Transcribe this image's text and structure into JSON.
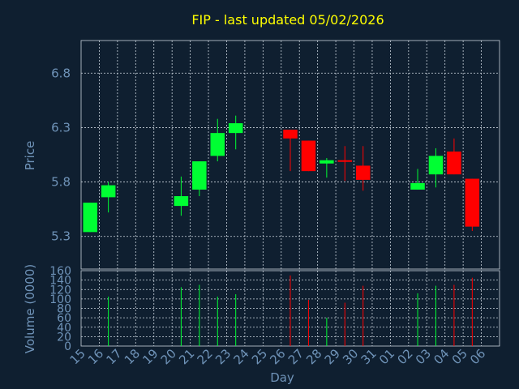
{
  "chart_data": {
    "type": "candlestick",
    "title": "FIP - last updated 05/02/2026",
    "xlabel": "Day",
    "price_ylabel": "Price",
    "volume_ylabel": "Volume (0000)",
    "x_ticks": [
      "15",
      "16",
      "17",
      "18",
      "19",
      "20",
      "21",
      "22",
      "23",
      "24",
      "25",
      "26",
      "27",
      "28",
      "29",
      "30",
      "31",
      "01",
      "02",
      "03",
      "04",
      "05",
      "06"
    ],
    "price_y_ticks": [
      5.3,
      5.8,
      6.3,
      6.8
    ],
    "price_ylim": [
      5.0,
      7.1
    ],
    "volume_y_ticks": [
      0,
      20,
      40,
      60,
      80,
      100,
      120,
      140,
      160
    ],
    "volume_ylim": [
      0,
      160
    ],
    "grid": true,
    "colors": {
      "up": "#00ff33",
      "down": "#ff0000",
      "title": "#ffff00",
      "label": "#6f93b8",
      "background": "#0f1f30"
    },
    "candles": [
      {
        "day": "15",
        "open": 5.34,
        "close": 5.61,
        "high": 5.61,
        "low": 5.34,
        "volume": 0
      },
      {
        "day": "16",
        "open": 5.66,
        "close": 5.77,
        "high": 5.8,
        "low": 5.52,
        "volume": 105
      },
      {
        "day": "20",
        "open": 5.58,
        "close": 5.67,
        "high": 5.85,
        "low": 5.49,
        "volume": 125
      },
      {
        "day": "21",
        "open": 5.73,
        "close": 5.99,
        "high": 5.99,
        "low": 5.67,
        "volume": 130
      },
      {
        "day": "22",
        "open": 6.04,
        "close": 6.25,
        "high": 6.38,
        "low": 5.99,
        "volume": 105
      },
      {
        "day": "23",
        "open": 6.25,
        "close": 6.34,
        "high": 6.41,
        "low": 6.1,
        "volume": 110
      },
      {
        "day": "26",
        "open": 6.28,
        "close": 6.2,
        "high": 6.28,
        "low": 5.9,
        "volume": 150
      },
      {
        "day": "27",
        "open": 6.18,
        "close": 5.9,
        "high": 6.18,
        "low": 5.9,
        "volume": 98
      },
      {
        "day": "28",
        "open": 5.97,
        "close": 6.0,
        "high": 6.02,
        "low": 5.84,
        "volume": 60
      },
      {
        "day": "29",
        "open": 6.0,
        "close": 5.99,
        "high": 6.13,
        "low": 5.81,
        "volume": 92
      },
      {
        "day": "30",
        "open": 5.95,
        "close": 5.82,
        "high": 6.13,
        "low": 5.72,
        "volume": 128
      },
      {
        "day": "02",
        "open": 5.73,
        "close": 5.79,
        "high": 5.92,
        "low": 5.73,
        "volume": 112
      },
      {
        "day": "03",
        "open": 5.87,
        "close": 6.04,
        "high": 6.11,
        "low": 5.75,
        "volume": 128
      },
      {
        "day": "04",
        "open": 6.08,
        "close": 5.87,
        "high": 6.2,
        "low": 5.87,
        "volume": 130
      },
      {
        "day": "05",
        "open": 5.83,
        "close": 5.39,
        "high": 5.83,
        "low": 5.35,
        "volume": 145
      }
    ]
  }
}
